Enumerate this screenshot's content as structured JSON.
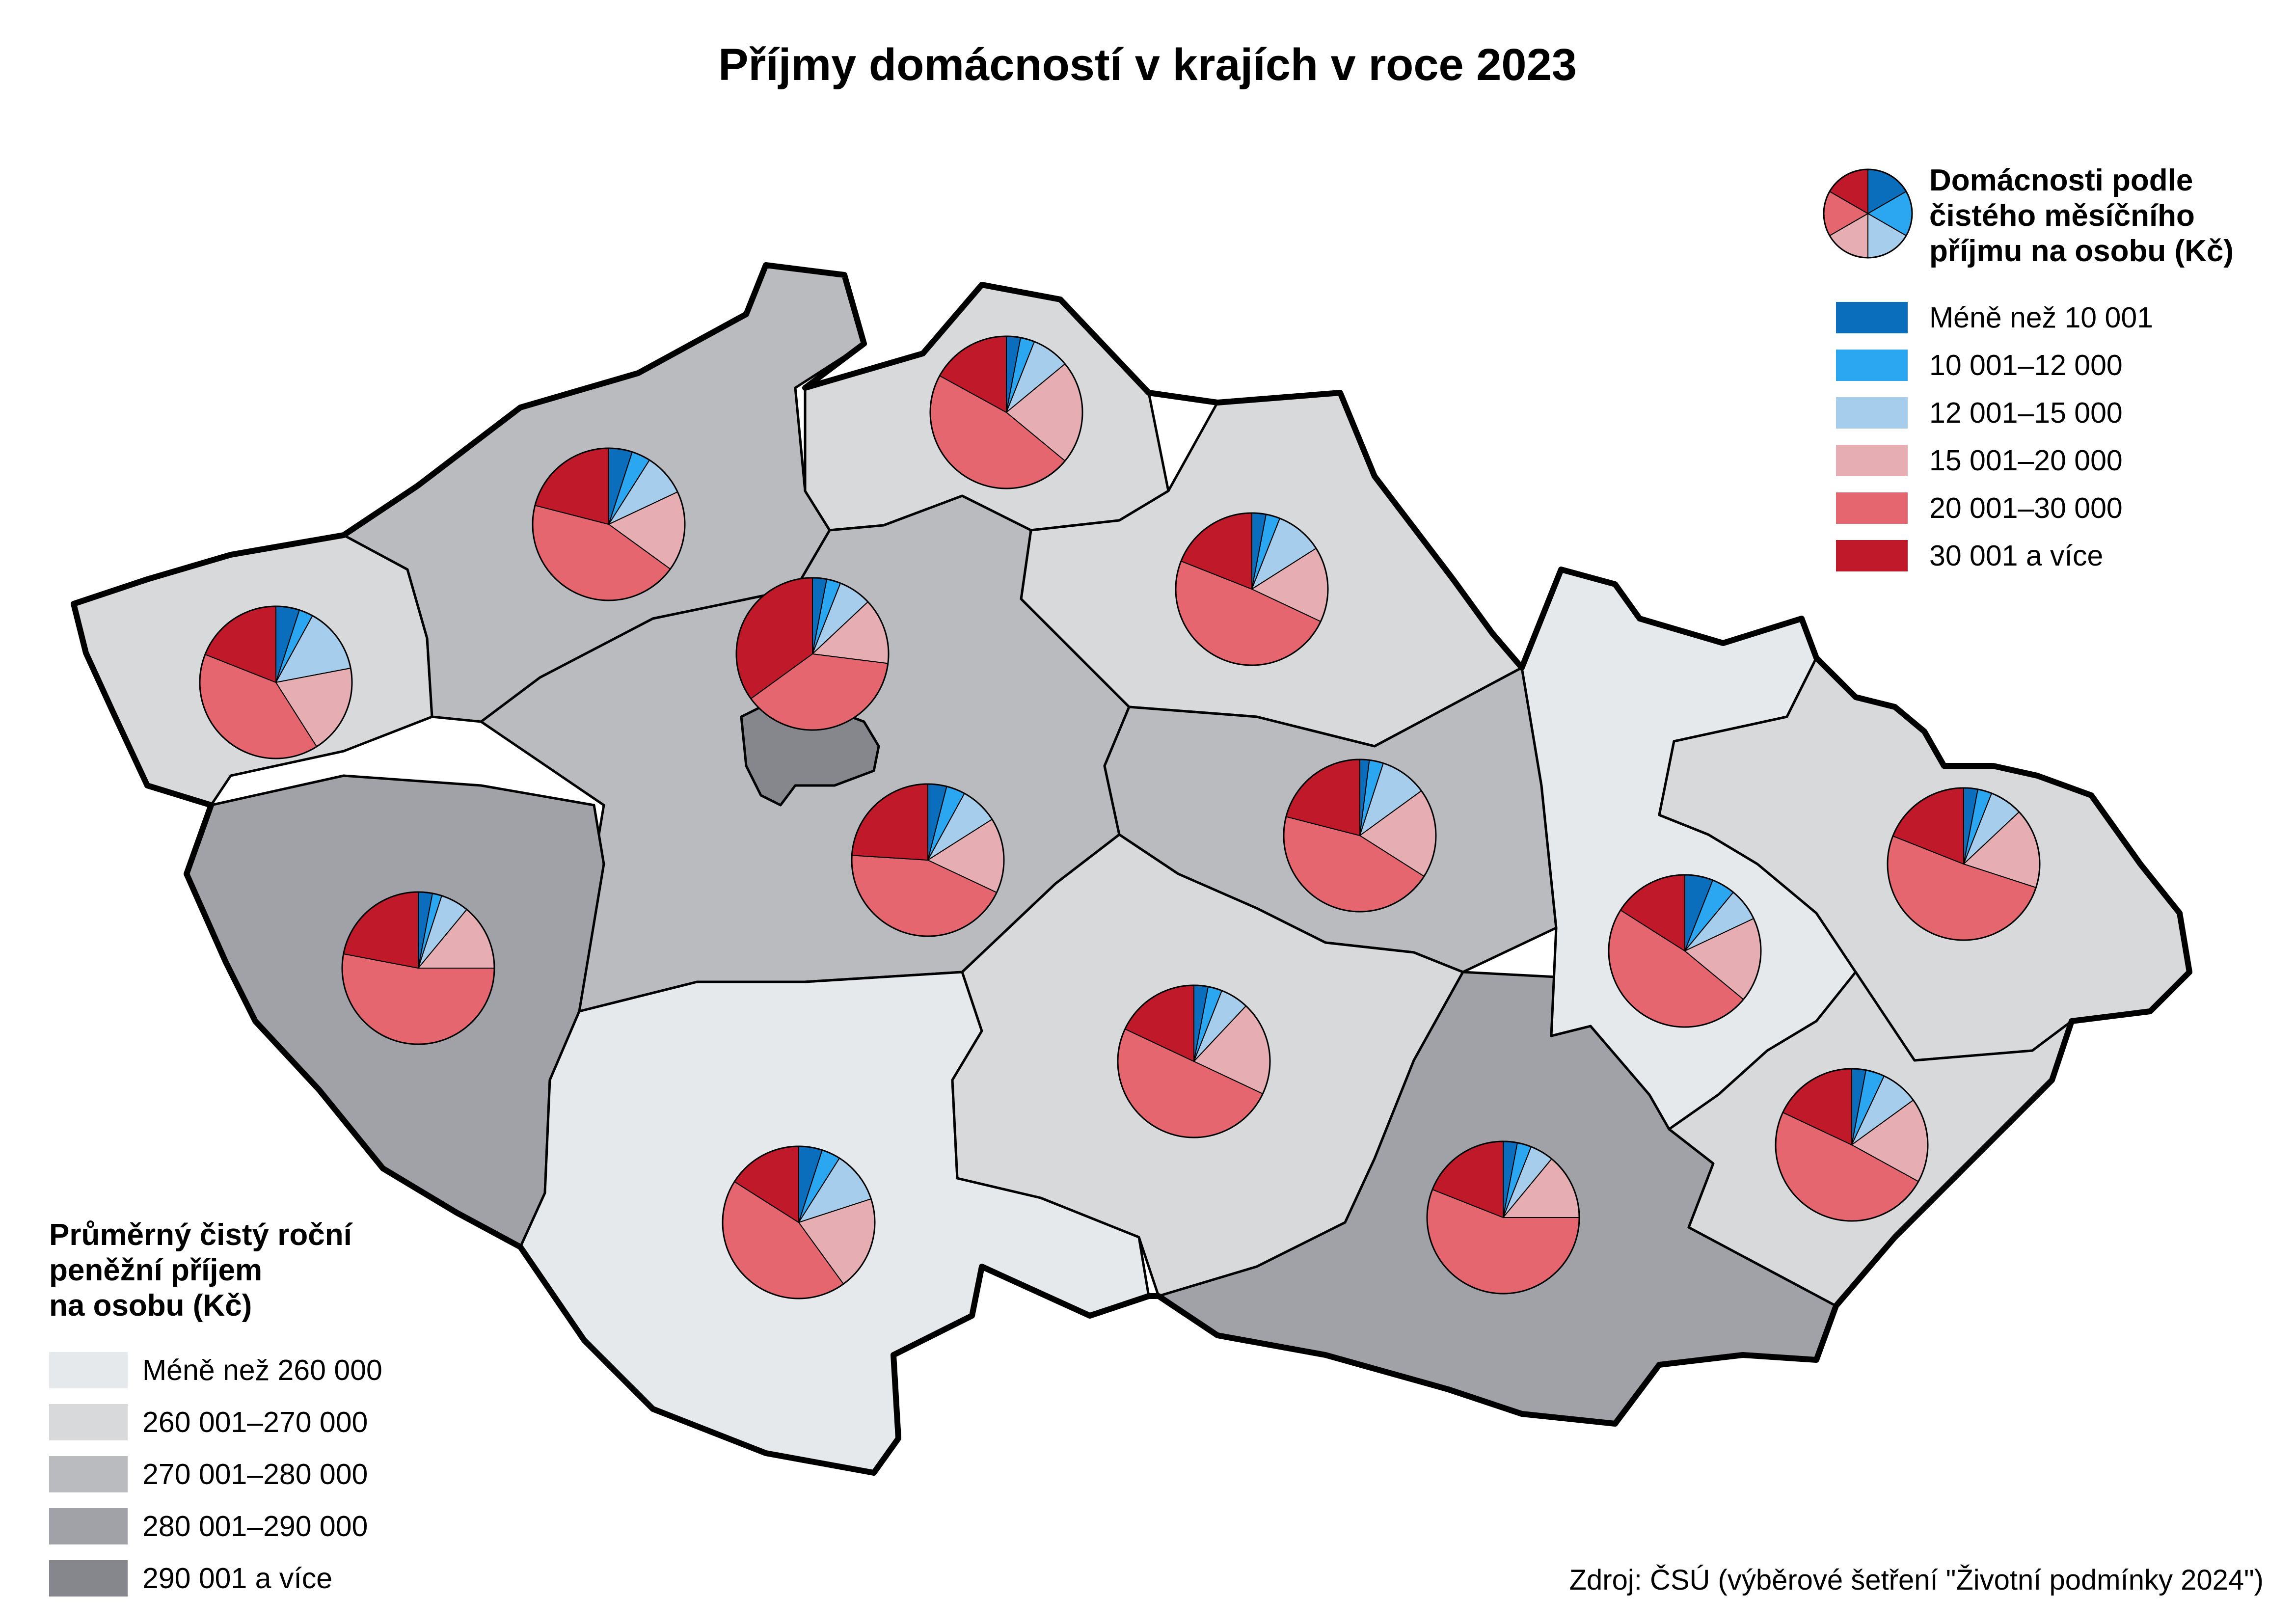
{
  "title": "Příjmy domácností v krajích v roce 2023",
  "source": "Zdroj: ČSÚ (výběrové šetření \"Životní podmínky 2024\")",
  "income_categories": {
    "heading_lines": [
      "Domácnosti podle",
      "čistého měsíčního",
      "příjmu na osobu (Kč)"
    ],
    "items": [
      {
        "label": "Méně než 10 001",
        "color": "#0a6ebd"
      },
      {
        "label": "10 001–12 000",
        "color": "#2aa7f0"
      },
      {
        "label": "12 001–15 000",
        "color": "#a6cdeb"
      },
      {
        "label": "15 001–20 000",
        "color": "#e6adb2"
      },
      {
        "label": "20 001–30 000",
        "color": "#e6666f"
      },
      {
        "label": "30 001 a více",
        "color": "#c0192a"
      }
    ]
  },
  "annual_income_classes": {
    "heading_lines": [
      "Průměrný čistý roční",
      "peněžní příjem",
      "na osobu (Kč)"
    ],
    "items": [
      {
        "label": "Méně než 260 000",
        "color": "#e6e9ec"
      },
      {
        "label": "260 001–270 000",
        "color": "#d8d9db"
      },
      {
        "label": "270 001–280 000",
        "color": "#b9bbbf"
      },
      {
        "label": "280 001–290 000",
        "color": "#a0a2a7"
      },
      {
        "label": "290 001 a více",
        "color": "#85878c"
      }
    ]
  },
  "regions": [
    {
      "id": "praha",
      "income_class": 4,
      "pie": [
        3,
        3,
        7,
        14,
        38,
        35
      ]
    },
    {
      "id": "stredocesky",
      "income_class": 2,
      "pie": [
        4,
        4,
        8,
        16,
        44,
        24
      ]
    },
    {
      "id": "jihocesky",
      "income_class": 0,
      "pie": [
        5,
        4,
        11,
        20,
        44,
        16
      ]
    },
    {
      "id": "plzensky",
      "income_class": 3,
      "pie": [
        3,
        2,
        6,
        14,
        53,
        22
      ]
    },
    {
      "id": "karlovarsky",
      "income_class": 1,
      "pie": [
        5,
        3,
        14,
        19,
        40,
        19
      ]
    },
    {
      "id": "ustecky",
      "income_class": 2,
      "pie": [
        5,
        4,
        9,
        17,
        44,
        21
      ]
    },
    {
      "id": "liberecky",
      "income_class": 1,
      "pie": [
        3,
        3,
        8,
        22,
        47,
        17
      ]
    },
    {
      "id": "kralovehradecky",
      "income_class": 1,
      "pie": [
        3,
        3,
        10,
        16,
        49,
        19
      ]
    },
    {
      "id": "pardubicky",
      "income_class": 2,
      "pie": [
        2,
        3,
        10,
        19,
        45,
        21
      ]
    },
    {
      "id": "vysocina",
      "income_class": 1,
      "pie": [
        3,
        3,
        6,
        20,
        50,
        18
      ]
    },
    {
      "id": "jihomoravsky",
      "income_class": 3,
      "pie": [
        3,
        3,
        5,
        14,
        56,
        19
      ]
    },
    {
      "id": "olomoucky",
      "income_class": 0,
      "pie": [
        6,
        5,
        7,
        18,
        48,
        16
      ]
    },
    {
      "id": "zlinsky",
      "income_class": 1,
      "pie": [
        3,
        4,
        8,
        18,
        49,
        18
      ]
    },
    {
      "id": "moravskoslezsky",
      "income_class": 1,
      "pie": [
        3,
        3,
        7,
        17,
        51,
        19
      ]
    }
  ]
}
